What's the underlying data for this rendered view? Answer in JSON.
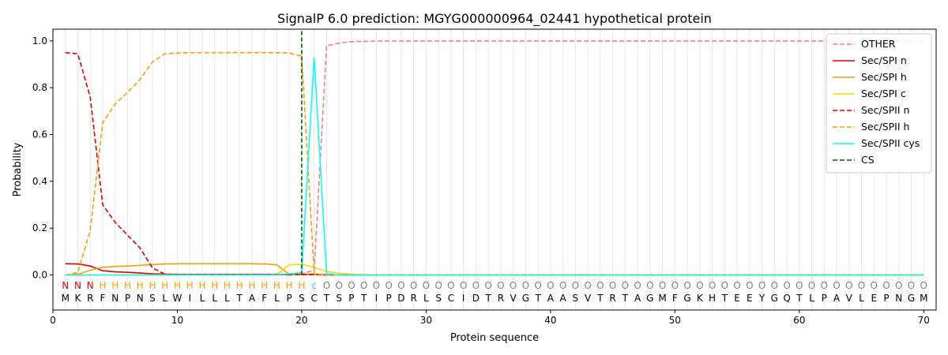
{
  "chart_data": {
    "type": "line",
    "title": "SignalP 6.0 prediction: MGYG000000964_02441 hypothetical protein",
    "xlabel": "Protein sequence",
    "ylabel": "Probability",
    "xlim": [
      0,
      71
    ],
    "ylim": [
      -0.15,
      1.05
    ],
    "xticks": [
      0,
      10,
      20,
      30,
      40,
      50,
      60,
      70
    ],
    "yticks": [
      0.0,
      0.2,
      0.4,
      0.6,
      0.8,
      1.0
    ],
    "vertical_gridlines": "every residue position",
    "legend_position": "top-right",
    "cleavage_site": 20,
    "sequence": [
      "M",
      "K",
      "R",
      "F",
      "N",
      "P",
      "N",
      "S",
      "L",
      "W",
      "I",
      "L",
      "L",
      "L",
      "T",
      "A",
      "F",
      "L",
      "P",
      "S",
      "C",
      "T",
      "S",
      "P",
      "T",
      "I",
      "P",
      "D",
      "R",
      "L",
      "S",
      "C",
      "I",
      "D",
      "T",
      "R",
      "V",
      "G",
      "T",
      "A",
      "A",
      "S",
      "V",
      "T",
      "R",
      "T",
      "A",
      "G",
      "M",
      "F",
      "G",
      "K",
      "H",
      "T",
      "E",
      "E",
      "Y",
      "G",
      "Q",
      "T",
      "L",
      "P",
      "A",
      "V",
      "L",
      "E",
      "P",
      "N",
      "G",
      "M"
    ],
    "labels": [
      "N",
      "N",
      "N",
      "H",
      "H",
      "H",
      "H",
      "H",
      "H",
      "H",
      "H",
      "H",
      "H",
      "H",
      "H",
      "H",
      "H",
      "H",
      "H",
      "H",
      "c",
      "O",
      "O",
      "O",
      "O",
      "O",
      "O",
      "O",
      "O",
      "O",
      "O",
      "O",
      "O",
      "O",
      "O",
      "O",
      "O",
      "O",
      "O",
      "O",
      "O",
      "O",
      "O",
      "O",
      "O",
      "O",
      "O",
      "O",
      "O",
      "O",
      "O",
      "O",
      "O",
      "O",
      "O",
      "O",
      "O",
      "O",
      "O",
      "O",
      "O",
      "O",
      "O",
      "O",
      "O",
      "O",
      "O",
      "O",
      "O",
      "O"
    ],
    "label_colors": {
      "N": "#e00000",
      "H": "#f5a000",
      "c": "#00e5ee",
      "O": "#808080"
    },
    "series": [
      {
        "name": "OTHER",
        "color": "#f08080",
        "dash": "dashed",
        "values": [
          0,
          0,
          0,
          0,
          0,
          0,
          0,
          0,
          0,
          0,
          0,
          0,
          0,
          0,
          0,
          0,
          0,
          0,
          0,
          0.005,
          0.02,
          0.98,
          0.99,
          0.997,
          0.998,
          0.999,
          0.999,
          0.999,
          0.999,
          0.999,
          0.999,
          0.999,
          0.999,
          0.999,
          0.999,
          0.999,
          0.999,
          0.999,
          0.999,
          0.999,
          0.999,
          0.999,
          0.999,
          0.999,
          0.999,
          0.999,
          0.999,
          0.999,
          0.999,
          0.999,
          0.999,
          0.999,
          0.999,
          0.999,
          0.999,
          0.999,
          0.999,
          0.999,
          0.999,
          0.999,
          0.999,
          0.999,
          0.999,
          0.999,
          0.999,
          0.999,
          0.999,
          0.999,
          0.999,
          0.999
        ]
      },
      {
        "name": "Sec/SPI n",
        "color": "#e00000",
        "dash": "solid",
        "values": [
          0.048,
          0.047,
          0.038,
          0.018,
          0.013,
          0.011,
          0.008,
          0.005,
          0.003,
          0.002,
          0.002,
          0.002,
          0.002,
          0.002,
          0.002,
          0.002,
          0.002,
          0.002,
          0.002,
          0.002,
          0.003,
          0,
          0,
          0,
          0,
          0,
          0,
          0,
          0,
          0,
          0,
          0,
          0,
          0,
          0,
          0,
          0,
          0,
          0,
          0,
          0,
          0,
          0,
          0,
          0,
          0,
          0,
          0,
          0,
          0,
          0,
          0,
          0,
          0,
          0,
          0,
          0,
          0,
          0,
          0,
          0,
          0,
          0,
          0,
          0,
          0,
          0,
          0,
          0,
          0
        ]
      },
      {
        "name": "Sec/SPI h",
        "color": "#f5a000",
        "dash": "solid",
        "values": [
          0,
          0.003,
          0.02,
          0.033,
          0.036,
          0.038,
          0.041,
          0.044,
          0.047,
          0.048,
          0.048,
          0.048,
          0.048,
          0.048,
          0.048,
          0.048,
          0.047,
          0.043,
          0.002,
          0.001,
          0.001,
          0,
          0,
          0,
          0,
          0,
          0,
          0,
          0,
          0,
          0,
          0,
          0,
          0,
          0,
          0,
          0,
          0,
          0,
          0,
          0,
          0,
          0,
          0,
          0,
          0,
          0,
          0,
          0,
          0,
          0,
          0,
          0,
          0,
          0,
          0,
          0,
          0,
          0,
          0,
          0,
          0,
          0,
          0,
          0,
          0,
          0,
          0,
          0,
          0
        ]
      },
      {
        "name": "Sec/SPI c",
        "color": "#ffd700",
        "dash": "solid",
        "values": [
          0,
          0,
          0,
          0,
          0,
          0,
          0,
          0,
          0,
          0,
          0,
          0,
          0,
          0,
          0,
          0,
          0,
          0.002,
          0.043,
          0.045,
          0.032,
          0.015,
          0.007,
          0.003,
          0.001,
          0,
          0,
          0,
          0,
          0,
          0,
          0,
          0,
          0,
          0,
          0,
          0,
          0,
          0,
          0,
          0,
          0,
          0,
          0,
          0,
          0,
          0,
          0,
          0,
          0,
          0,
          0,
          0,
          0,
          0,
          0,
          0,
          0,
          0,
          0,
          0,
          0,
          0,
          0,
          0,
          0,
          0,
          0,
          0,
          0
        ]
      },
      {
        "name": "Sec/SPII n",
        "color": "#e00000",
        "dash": "dashed",
        "values": [
          0.95,
          0.945,
          0.76,
          0.3,
          0.225,
          0.17,
          0.115,
          0.03,
          0.003,
          0.002,
          0.002,
          0.002,
          0.002,
          0.002,
          0.002,
          0.002,
          0.002,
          0.002,
          0.002,
          0.002,
          0.002,
          0,
          0,
          0,
          0,
          0,
          0,
          0,
          0,
          0,
          0,
          0,
          0,
          0,
          0,
          0,
          0,
          0,
          0,
          0,
          0,
          0,
          0,
          0,
          0,
          0,
          0,
          0,
          0,
          0,
          0,
          0,
          0,
          0,
          0,
          0,
          0,
          0,
          0,
          0,
          0,
          0,
          0,
          0,
          0,
          0,
          0,
          0,
          0,
          0
        ]
      },
      {
        "name": "Sec/SPII h",
        "color": "#f5a000",
        "dash": "dashed",
        "values": [
          0,
          0.01,
          0.19,
          0.65,
          0.73,
          0.78,
          0.835,
          0.91,
          0.945,
          0.948,
          0.95,
          0.95,
          0.95,
          0.95,
          0.95,
          0.95,
          0.95,
          0.95,
          0.948,
          0.935,
          0.005,
          0,
          0,
          0,
          0,
          0,
          0,
          0,
          0,
          0,
          0,
          0,
          0,
          0,
          0,
          0,
          0,
          0,
          0,
          0,
          0,
          0,
          0,
          0,
          0,
          0,
          0,
          0,
          0,
          0,
          0,
          0,
          0,
          0,
          0,
          0,
          0,
          0,
          0,
          0,
          0,
          0,
          0,
          0,
          0,
          0,
          0,
          0,
          0,
          0
        ]
      },
      {
        "name": "Sec/SPII cys",
        "color": "#00ffff",
        "dash": "solid",
        "values": [
          0,
          0,
          0,
          0,
          0,
          0,
          0,
          0,
          0,
          0,
          0,
          0,
          0,
          0,
          0,
          0,
          0,
          0,
          0.005,
          0.01,
          0.93,
          0.005,
          0,
          0,
          0,
          0,
          0,
          0,
          0,
          0,
          0,
          0,
          0,
          0,
          0,
          0,
          0,
          0,
          0,
          0,
          0,
          0,
          0,
          0,
          0,
          0,
          0,
          0,
          0,
          0,
          0,
          0,
          0,
          0,
          0,
          0,
          0,
          0,
          0,
          0,
          0,
          0,
          0,
          0,
          0,
          0,
          0,
          0,
          0,
          0
        ]
      }
    ],
    "cs_legend": {
      "name": "CS",
      "color": "#006400",
      "dash": "dashed"
    }
  }
}
